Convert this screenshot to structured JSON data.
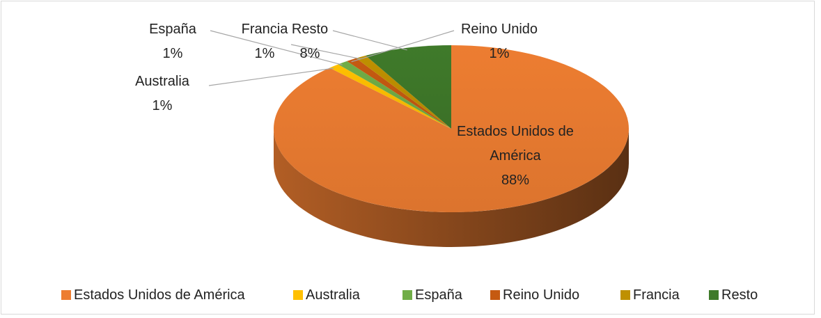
{
  "chart_data": {
    "type": "pie",
    "categories": [
      "Estados Unidos de América",
      "Australia",
      "España",
      "Reino Unido",
      "Francia",
      "Resto"
    ],
    "values": [
      88,
      1,
      1,
      1,
      1,
      8
    ],
    "value_labels": [
      "88%",
      "1%",
      "1%",
      "1%",
      "1%",
      "8%"
    ],
    "colors": [
      "#ed7d31",
      "#ffc000",
      "#70ad47",
      "#c55a11",
      "#bf9000",
      "#3f7a2a"
    ],
    "legend": "bottom"
  }
}
